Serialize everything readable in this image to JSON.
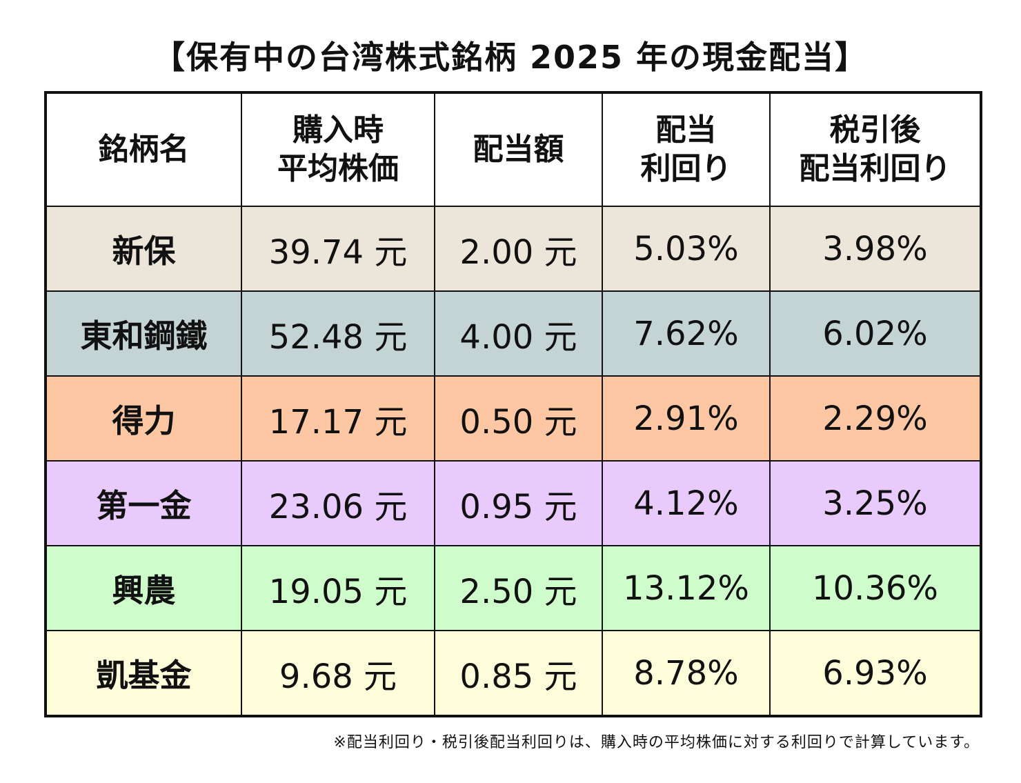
{
  "title": "【保有中の台湾株式銘柄 2025 年の現金配当】",
  "headers": [
    {
      "lines": [
        "銘柄名"
      ]
    },
    {
      "lines": [
        "購入時",
        "平均株価"
      ]
    },
    {
      "lines": [
        "配当額"
      ]
    },
    {
      "lines": [
        "配当",
        "利回り"
      ]
    },
    {
      "lines": [
        "税引後",
        "配当利回り"
      ]
    }
  ],
  "rows": [
    {
      "name": "新保",
      "avg_price": "39.74 元",
      "dividend": "2.00 元",
      "yield": "5.03%",
      "after_tax_yield": "3.98%",
      "color": "#ece5da"
    },
    {
      "name": "東和鋼鐵",
      "avg_price": "52.48 元",
      "dividend": "4.00 元",
      "yield": "7.62%",
      "after_tax_yield": "6.02%",
      "color": "#c4d3d4"
    },
    {
      "name": "得力",
      "avg_price": "17.17 元",
      "dividend": "0.50 元",
      "yield": "2.91%",
      "after_tax_yield": "2.29%",
      "color": "#fdc7a3"
    },
    {
      "name": "第一金",
      "avg_price": "23.06 元",
      "dividend": "0.95 元",
      "yield": "4.12%",
      "after_tax_yield": "3.25%",
      "color": "#e8cafc"
    },
    {
      "name": "興農",
      "avg_price": "19.05 元",
      "dividend": "2.50 元",
      "yield": "13.12%",
      "after_tax_yield": "10.36%",
      "color": "#cefdcb"
    },
    {
      "name": "凱基金",
      "avg_price": "9.68 元",
      "dividend": "0.85 元",
      "yield": "8.78%",
      "after_tax_yield": "6.93%",
      "color": "#fefedb"
    }
  ],
  "footnote": "※配当利回り・税引後配当利回りは、購入時の平均株価に対する利回りで計算しています。"
}
